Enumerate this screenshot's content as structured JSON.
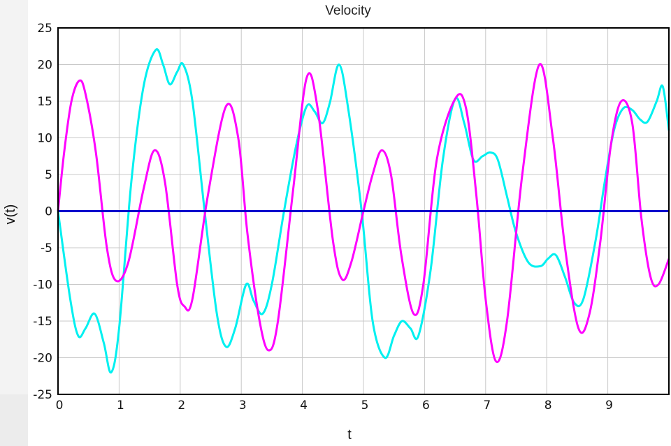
{
  "chart_data": {
    "type": "line",
    "title": "Velocity",
    "xlabel": "t",
    "ylabel": "v(t)",
    "xlim": [
      0,
      10
    ],
    "ylim": [
      -25,
      25
    ],
    "grid": true,
    "legend": "none",
    "xticks": [
      "0",
      "1",
      "2",
      "3",
      "4",
      "5",
      "6",
      "7",
      "8",
      "9"
    ],
    "yticks": [
      "25",
      "20",
      "15",
      "10",
      "5",
      "0",
      "-5",
      "-10",
      "-15",
      "-20",
      "-25"
    ],
    "series": [
      {
        "color": "#00f0f0",
        "x": [
          0,
          0.2,
          0.33,
          0.45,
          0.6,
          0.75,
          0.87,
          1.0,
          1.2,
          1.4,
          1.6,
          1.72,
          1.83,
          1.95,
          2.05,
          2.2,
          2.4,
          2.6,
          2.75,
          2.9,
          3.08,
          3.2,
          3.35,
          3.5,
          3.7,
          3.9,
          4.07,
          4.2,
          4.33,
          4.45,
          4.6,
          4.75,
          4.97,
          5.15,
          5.35,
          5.5,
          5.63,
          5.77,
          5.9,
          6.1,
          6.3,
          6.5,
          6.65,
          6.8,
          6.95,
          7.08,
          7.2,
          7.35,
          7.5,
          7.7,
          7.9,
          8.02,
          8.15,
          8.3,
          8.45,
          8.6,
          8.8,
          8.95,
          9.1,
          9.25,
          9.4,
          9.53,
          9.65,
          9.8,
          9.9,
          10.0
        ],
        "y": [
          0,
          -12,
          -17,
          -16,
          -14,
          -18,
          -22,
          -16,
          4,
          17,
          22,
          20,
          17.3,
          19,
          20,
          15,
          0,
          -14,
          -18.5,
          -16,
          -10,
          -12.2,
          -14,
          -10,
          0,
          9,
          14.3,
          13.6,
          12,
          14.8,
          20,
          14,
          0,
          -15,
          -20,
          -17,
          -15,
          -16,
          -17,
          -8,
          7,
          15.3,
          12,
          7,
          7.5,
          8,
          7,
          2,
          -3,
          -7,
          -7.5,
          -6.5,
          -6,
          -9,
          -12.5,
          -12,
          -4,
          4,
          11,
          14,
          13.8,
          12.5,
          12.2,
          15,
          17,
          11
        ]
      },
      {
        "color": "#ff00ff",
        "x": [
          0,
          0.1,
          0.22,
          0.35,
          0.45,
          0.62,
          0.8,
          0.95,
          1.15,
          1.4,
          1.58,
          1.75,
          1.95,
          2.07,
          2.2,
          2.45,
          2.75,
          2.95,
          3.1,
          3.3,
          3.45,
          3.6,
          3.85,
          4.07,
          4.25,
          4.5,
          4.65,
          4.8,
          5.0,
          5.15,
          5.3,
          5.45,
          5.62,
          5.82,
          5.98,
          6.2,
          6.5,
          6.68,
          6.85,
          7.0,
          7.17,
          7.35,
          7.6,
          7.88,
          8.1,
          8.3,
          8.52,
          8.7,
          8.88,
          9.05,
          9.22,
          9.4,
          9.55,
          9.7,
          9.83,
          10.0
        ],
        "y": [
          0,
          8,
          15,
          17.8,
          16,
          8,
          -5,
          -9.5,
          -7,
          3,
          8.3,
          4,
          -10,
          -13,
          -12,
          2,
          14.3,
          10,
          -3,
          -15,
          -19,
          -15,
          3,
          18.2,
          14,
          -4,
          -9.3,
          -7,
          0,
          5,
          8.3,
          5,
          -6,
          -14,
          -10,
          7,
          15.3,
          14,
          2,
          -12,
          -20.5,
          -15,
          5,
          20,
          10,
          -5,
          -16,
          -14,
          -4,
          9,
          15,
          12,
          -1,
          -9,
          -10,
          -6.5
        ]
      },
      {
        "color": "#0000cc",
        "x": [
          0,
          10
        ],
        "y": [
          0,
          0
        ]
      }
    ]
  }
}
